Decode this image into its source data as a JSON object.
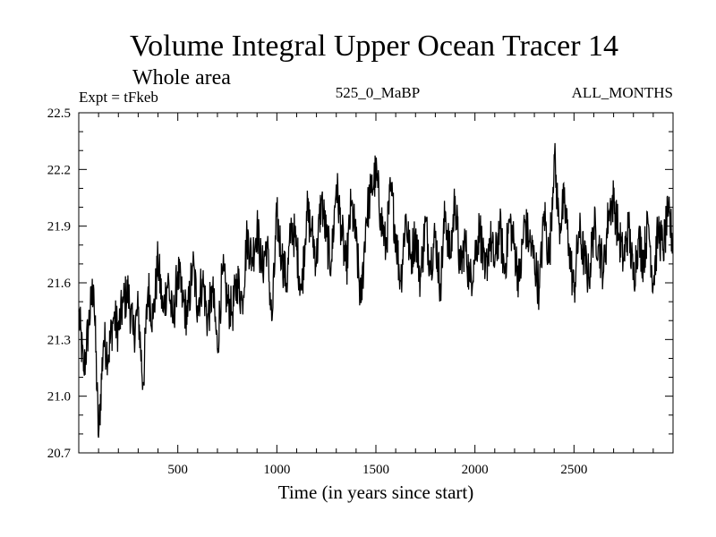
{
  "chart_data": {
    "type": "line",
    "title": "Volume Integral Upper Ocean Tracer 14",
    "subtitle": "Whole area",
    "experiment": "Expt = tFkeb",
    "period": "525_0_MaBP",
    "months": "ALL_MONTHS",
    "xlabel": "Time (in years since start)",
    "ylabel": "",
    "xlim": [
      0,
      3000
    ],
    "ylim": [
      20.7,
      22.5
    ],
    "x_ticks": [
      500,
      1000,
      1500,
      2000,
      2500
    ],
    "x_tick_labels": [
      "500",
      "1000",
      "1500",
      "2000",
      "2500"
    ],
    "y_ticks": [
      20.7,
      21.0,
      21.3,
      21.6,
      21.9,
      22.2,
      22.5
    ],
    "y_tick_labels": [
      "20.7",
      "21.0",
      "21.3",
      "21.6",
      "21.9",
      "22.2",
      "22.5"
    ],
    "grid": false,
    "legend": "none",
    "line_color": "#000000",
    "series": [
      {
        "x": [
          0,
          25,
          50,
          75,
          100,
          125,
          150,
          175,
          200,
          225,
          250,
          275,
          300,
          325,
          350,
          375,
          400,
          425,
          450,
          475,
          500,
          525,
          550,
          575,
          600,
          625,
          650,
          675,
          700,
          725,
          750,
          775,
          800,
          825,
          850,
          875,
          900,
          925,
          950,
          975,
          1000,
          1025,
          1050,
          1075,
          1100,
          1125,
          1150,
          1175,
          1200,
          1225,
          1250,
          1275,
          1300,
          1325,
          1350,
          1375,
          1400,
          1425,
          1450,
          1475,
          1500,
          1525,
          1550,
          1575,
          1600,
          1625,
          1650,
          1675,
          1700,
          1725,
          1750,
          1775,
          1800,
          1825,
          1850,
          1875,
          1900,
          1925,
          1950,
          1975,
          2000,
          2025,
          2050,
          2075,
          2100,
          2125,
          2150,
          2175,
          2200,
          2225,
          2250,
          2275,
          2300,
          2325,
          2350,
          2375,
          2400,
          2425,
          2450,
          2475,
          2500,
          2525,
          2550,
          2575,
          2600,
          2625,
          2650,
          2675,
          2700,
          2725,
          2750,
          2775,
          2800,
          2825,
          2850,
          2875,
          2900,
          2925,
          2950,
          2975,
          3000
        ],
        "values": [
          21.45,
          21.12,
          21.38,
          21.6,
          20.78,
          21.3,
          21.22,
          21.42,
          21.35,
          21.5,
          21.55,
          21.32,
          21.46,
          21.05,
          21.58,
          21.4,
          21.72,
          21.44,
          21.62,
          21.38,
          21.66,
          21.5,
          21.42,
          21.7,
          21.48,
          21.62,
          21.4,
          21.56,
          21.25,
          21.66,
          21.5,
          21.44,
          21.62,
          21.5,
          21.85,
          21.72,
          21.9,
          21.66,
          21.82,
          21.38,
          21.95,
          21.74,
          21.6,
          21.92,
          21.78,
          21.55,
          21.98,
          21.88,
          21.72,
          22.05,
          21.84,
          21.7,
          22.12,
          21.9,
          21.66,
          22.02,
          21.82,
          21.48,
          21.94,
          22.08,
          22.18,
          21.96,
          21.78,
          22.1,
          21.86,
          21.6,
          21.96,
          21.72,
          21.86,
          21.62,
          21.92,
          21.7,
          21.85,
          21.58,
          21.98,
          21.72,
          22.06,
          21.66,
          21.82,
          21.6,
          21.75,
          21.9,
          21.62,
          21.84,
          21.7,
          21.9,
          21.66,
          21.94,
          21.78,
          21.6,
          21.92,
          21.82,
          21.72,
          21.56,
          21.98,
          21.7,
          22.28,
          21.9,
          22.02,
          21.8,
          21.55,
          21.88,
          21.74,
          21.62,
          21.9,
          21.8,
          21.66,
          21.98,
          22.04,
          21.86,
          21.72,
          21.9,
          21.62,
          21.84,
          21.72,
          21.92,
          21.6,
          21.88,
          21.78,
          21.96,
          21.82
        ]
      }
    ]
  }
}
